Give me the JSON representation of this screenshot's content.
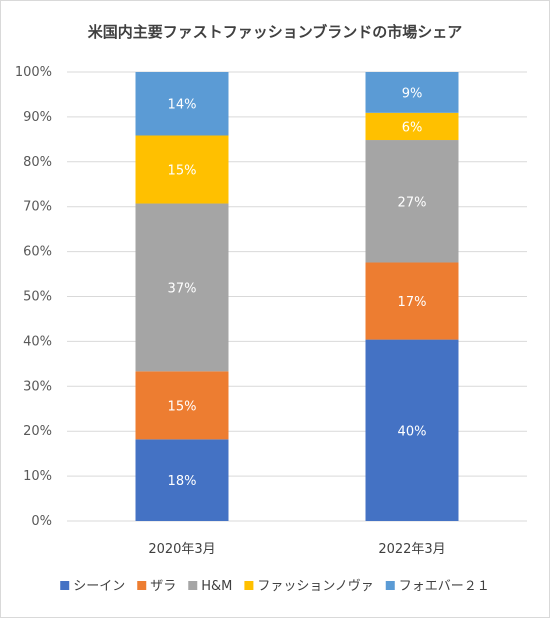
{
  "chart_data": {
    "type": "bar",
    "stacked": true,
    "percent": true,
    "title": "米国内主要ファストファッションブランドの市場シェア",
    "categories": [
      "2020年3月",
      "2022年3月"
    ],
    "series": [
      {
        "name": "シーイン",
        "values": [
          18,
          40
        ],
        "labels": [
          "18%",
          "40%"
        ],
        "color": "#4472c4"
      },
      {
        "name": "ザラ",
        "values": [
          15,
          17
        ],
        "labels": [
          "15%",
          "17%"
        ],
        "color": "#ed7d31"
      },
      {
        "name": "H&M",
        "values": [
          37,
          27
        ],
        "labels": [
          "37%",
          "27%"
        ],
        "color": "#a5a5a5"
      },
      {
        "name": "ファッションノヴァ",
        "values": [
          15,
          6
        ],
        "labels": [
          "15%",
          "6%"
        ],
        "color": "#ffc000"
      },
      {
        "name": "フォエバー２１",
        "values": [
          14,
          9
        ],
        "labels": [
          "14%",
          "9%"
        ],
        "color": "#5b9bd5"
      }
    ],
    "yticks": [
      "0%",
      "10%",
      "20%",
      "30%",
      "40%",
      "50%",
      "60%",
      "70%",
      "80%",
      "90%",
      "100%"
    ],
    "ylim": [
      0,
      100
    ],
    "grid": true,
    "legend_position": "bottom"
  }
}
